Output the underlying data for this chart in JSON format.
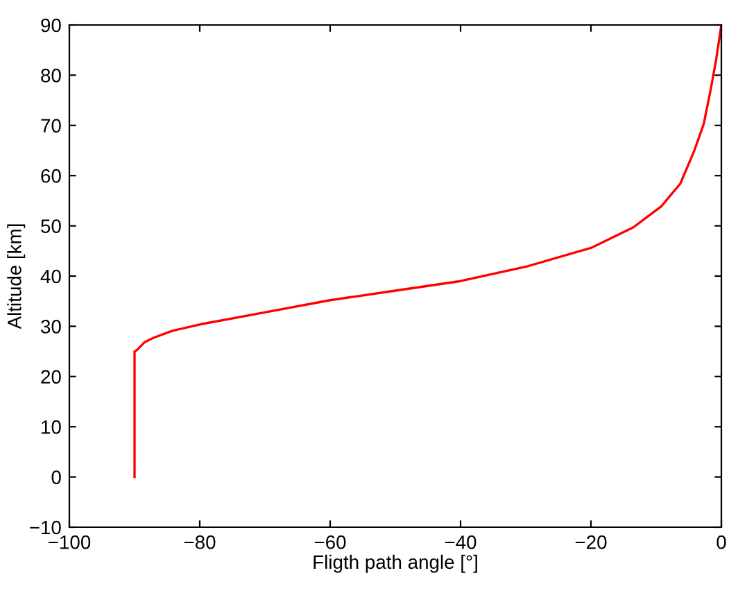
{
  "chart_data": {
    "type": "line",
    "xlabel": "Fligth path angle [°]",
    "ylabel": "Altitude [km]",
    "series": [
      {
        "color": "#ff0000",
        "x": [
          -90,
          -90,
          -89.6,
          -88.5,
          -87.1,
          -84.2,
          -79.9,
          -71.2,
          -60,
          -50,
          -40,
          -29.6,
          -20,
          -13.5,
          -9.2,
          -6.3,
          -4.2,
          -2.7,
          -1.7,
          -0.8,
          0
        ],
        "values": [
          0,
          25,
          25.3,
          26.8,
          27.7,
          29.1,
          30.4,
          32.5,
          35.2,
          37.1,
          39,
          42,
          45.6,
          49.7,
          53.9,
          58.4,
          64.8,
          70.3,
          76.7,
          83.1,
          90
        ]
      }
    ],
    "xlim": [
      -100,
      0
    ],
    "ylim": [
      -10,
      90
    ],
    "xticks": [
      {
        "value": -100,
        "label": "−100"
      },
      {
        "value": -80,
        "label": "−80"
      },
      {
        "value": -60,
        "label": "−60"
      },
      {
        "value": -40,
        "label": "−40"
      },
      {
        "value": -20,
        "label": "−20"
      },
      0
    ],
    "yticks": [
      {
        "value": -10,
        "label": "−10"
      },
      0,
      10,
      20,
      30,
      40,
      50,
      60,
      70,
      80,
      90
    ],
    "grid": false,
    "legend": false
  }
}
